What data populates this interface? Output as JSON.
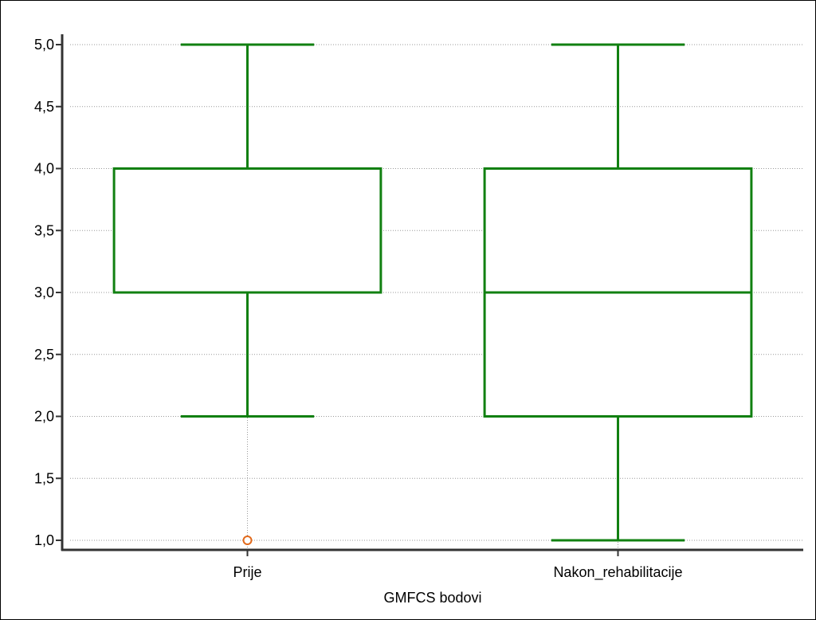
{
  "chart_data": {
    "type": "box",
    "title": "",
    "xlabel": "GMFCS bodovi",
    "ylabel": "",
    "categories": [
      "Prije",
      "Nakon_rehabilitacije"
    ],
    "y_ticks": [
      "1,0",
      "1,5",
      "2,0",
      "2,5",
      "3,0",
      "3,5",
      "4,0",
      "4,5",
      "5,0"
    ],
    "ylim": [
      1.0,
      5.0
    ],
    "grid": true,
    "series": [
      {
        "category": "Prije",
        "whisker_low": 2.0,
        "q1": 3.0,
        "median": 3.0,
        "q3": 4.0,
        "whisker_high": 5.0,
        "outliers": [
          1.0
        ]
      },
      {
        "category": "Nakon_rehabilitacije",
        "whisker_low": 1.0,
        "q1": 2.0,
        "median": 3.0,
        "q3": 4.0,
        "whisker_high": 5.0,
        "outliers": []
      }
    ],
    "colors": {
      "box": "#118011",
      "outlier": "#e2691a",
      "grid": "#999999",
      "axis": "#333333"
    }
  }
}
